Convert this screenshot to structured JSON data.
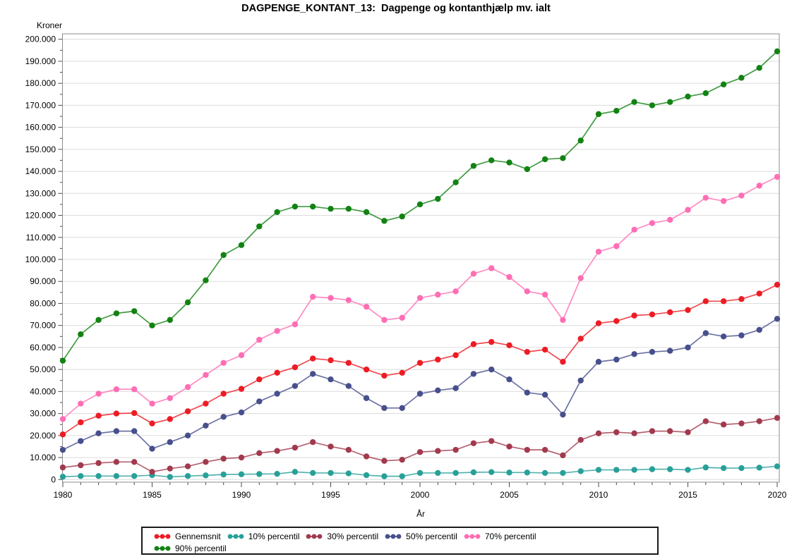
{
  "title": "DAGPENGE_KONTANT_13:  Dagpenge og kontanthjælp mv. ialt",
  "chart_data": {
    "type": "line",
    "title": "DAGPENGE_KONTANT_13:  Dagpenge og kontanthjælp mv. ialt",
    "ylabel": "Kroner",
    "xlabel": "År",
    "ylim": [
      0,
      200000
    ],
    "y_major_step": 10000,
    "y_minor_step": 5000,
    "y_tick_labels": [
      "0",
      "10.000",
      "20.000",
      "30.000",
      "40.000",
      "50.000",
      "60.000",
      "70.000",
      "80.000",
      "90.000",
      "100.000",
      "110.000",
      "120.000",
      "130.000",
      "140.000",
      "150.000",
      "160.000",
      "170.000",
      "180.000",
      "190.000",
      "200.000"
    ],
    "xlim": [
      1980,
      2020
    ],
    "x_major_ticks": [
      1980,
      1985,
      1990,
      1995,
      2000,
      2005,
      2010,
      2015,
      2020
    ],
    "x_minor_step": 1,
    "grid": "horizontal",
    "legend_position": "bottom",
    "x": [
      1980,
      1981,
      1982,
      1983,
      1984,
      1985,
      1986,
      1987,
      1988,
      1989,
      1990,
      1991,
      1992,
      1993,
      1994,
      1995,
      1996,
      1997,
      1998,
      1999,
      2000,
      2001,
      2002,
      2003,
      2004,
      2005,
      2006,
      2007,
      2008,
      2009,
      2010,
      2011,
      2012,
      2013,
      2014,
      2015,
      2016,
      2017,
      2018,
      2019,
      2020
    ],
    "series": [
      {
        "name": "Gennemsnit",
        "color": "#ed1c24",
        "values": [
          20500,
          26000,
          29000,
          30000,
          30200,
          25500,
          27500,
          31000,
          34500,
          39000,
          41200,
          45500,
          48500,
          51000,
          55000,
          54200,
          53000,
          50000,
          47200,
          48500,
          53000,
          54500,
          56500,
          61500,
          62500,
          61000,
          58000,
          59000,
          53500,
          64000,
          71000,
          72000,
          74500,
          75000,
          76000,
          77000,
          81000,
          81000,
          82000,
          84500,
          88500
        ]
      },
      {
        "name": "10% percentil",
        "color": "#28a098",
        "values": [
          1300,
          1600,
          1600,
          1600,
          1600,
          2000,
          1200,
          1600,
          1900,
          2300,
          2400,
          2500,
          2600,
          3500,
          3000,
          3000,
          2800,
          2000,
          1500,
          1500,
          3000,
          3000,
          3000,
          3300,
          3400,
          3200,
          3200,
          3000,
          3000,
          3800,
          4400,
          4400,
          4400,
          4700,
          4700,
          4400,
          5500,
          5200,
          5200,
          5400,
          6000
        ]
      },
      {
        "name": "30% percentil",
        "color": "#a23a4e",
        "values": [
          5500,
          6500,
          7500,
          8000,
          8000,
          3500,
          5000,
          6000,
          8000,
          9500,
          10000,
          12000,
          13000,
          14500,
          17000,
          15000,
          13500,
          10500,
          8500,
          9000,
          12500,
          13000,
          13500,
          16500,
          17500,
          15000,
          13500,
          13500,
          11000,
          18000,
          21000,
          21500,
          21000,
          22000,
          22000,
          21500,
          26500,
          25000,
          25500,
          26500,
          28000
        ]
      },
      {
        "name": "50% percentil",
        "color": "#474f8c",
        "values": [
          13500,
          17500,
          21000,
          22000,
          22000,
          14000,
          17000,
          20000,
          24500,
          28500,
          30500,
          35500,
          39000,
          42500,
          48000,
          45500,
          42500,
          37000,
          32500,
          32500,
          39000,
          40500,
          41500,
          48000,
          50000,
          45500,
          39500,
          38500,
          29500,
          45000,
          53500,
          54500,
          57000,
          58000,
          58500,
          60000,
          66500,
          65000,
          65500,
          68000,
          73000
        ]
      },
      {
        "name": "70% percentil",
        "color": "#ff6eb4",
        "values": [
          27500,
          34500,
          39000,
          41000,
          41000,
          34500,
          37000,
          42000,
          47500,
          53000,
          56500,
          63500,
          67500,
          70500,
          83000,
          82500,
          81500,
          78500,
          72500,
          73500,
          82500,
          84000,
          85500,
          93500,
          96000,
          92000,
          85500,
          84000,
          72500,
          91500,
          103500,
          106000,
          113500,
          116500,
          118000,
          122500,
          128000,
          126500,
          129000,
          133500,
          137500
        ]
      },
      {
        "name": "90% percentil",
        "color": "#128212",
        "values": [
          54000,
          66000,
          72500,
          75500,
          76500,
          70000,
          72500,
          80500,
          90500,
          102000,
          106500,
          115000,
          121500,
          124000,
          124000,
          123000,
          123000,
          121500,
          117500,
          119500,
          125000,
          127500,
          135000,
          142500,
          145000,
          144000,
          141000,
          145500,
          146000,
          154000,
          166000,
          167500,
          171500,
          170000,
          171500,
          174000,
          175500,
          179500,
          182500,
          187000,
          194500
        ]
      }
    ],
    "legend_rows": [
      [
        0,
        1,
        2,
        3,
        4
      ],
      [
        5
      ]
    ]
  },
  "style": {
    "grid_color": "#dcdcdc",
    "frame_color": "#8c8c8c",
    "tick_color": "#4a4a4a",
    "text_color": "#000000",
    "background": "#ffffff"
  }
}
